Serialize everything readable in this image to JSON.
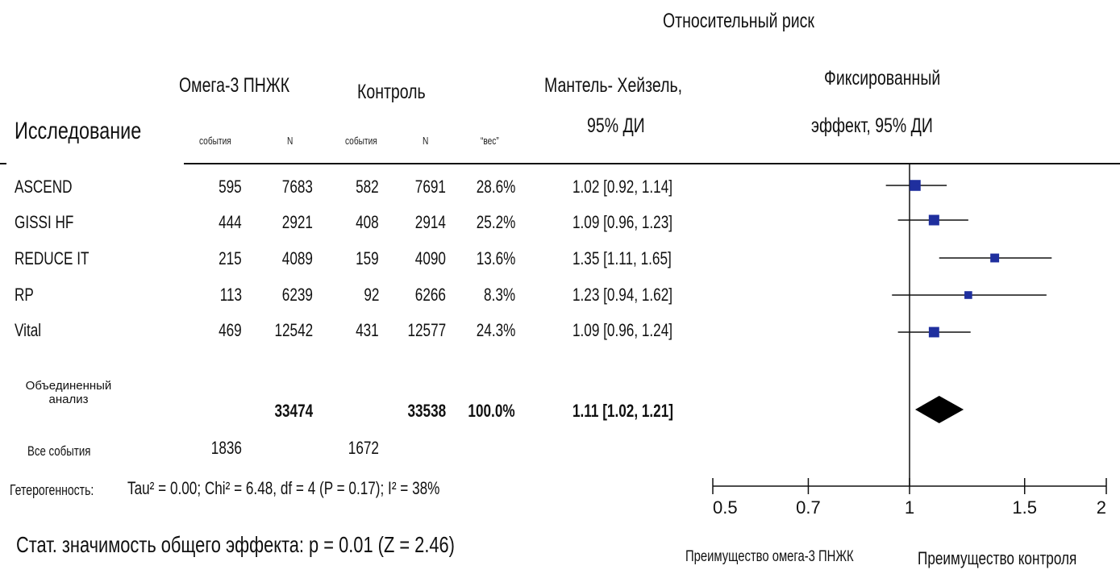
{
  "header": {
    "relative_risk": "Относительный риск",
    "omega": "Омега-3 ПНЖК",
    "control": "Контроль",
    "study": "Исследование",
    "mh_line1": "Мантель- Хейзель,",
    "mh_line2": "95% ДИ",
    "fixed_line1": "Фиксированный",
    "fixed_line2": "эффект, 95% ДИ",
    "events1": "события",
    "n1": "N",
    "events2": "события",
    "n2": "N",
    "weight": "“вес”"
  },
  "studies": [
    {
      "name": "ASCEND",
      "e1": "595",
      "n1": "7683",
      "e2": "582",
      "n2": "7691",
      "weight": "28.6%",
      "ci": "1.02 [0.92, 1.14]"
    },
    {
      "name": "GISSI HF",
      "e1": "444",
      "n1": "2921",
      "e2": "408",
      "n2": "2914",
      "weight": "25.2%",
      "ci": "1.09 [0.96, 1.23]"
    },
    {
      "name": "REDUCE IT",
      "e1": "215",
      "n1": "4089",
      "e2": "159",
      "n2": "4090",
      "weight": "13.6%",
      "ci": "1.35 [1.11, 1.65]"
    },
    {
      "name": "RP",
      "e1": "113",
      "n1": "6239",
      "e2": "92",
      "n2": "6266",
      "weight": "8.3%",
      "ci": "1.23 [0.94, 1.62]"
    },
    {
      "name": "Vital",
      "e1": "469",
      "n1": "12542",
      "e2": "431",
      "n2": "12577",
      "weight": "24.3%",
      "ci": "1.09 [0.96, 1.24]"
    }
  ],
  "pooled": {
    "label_line1": "Объединенный",
    "label_line2": "анализ",
    "n1": "33474",
    "n2": "33538",
    "weight": "100.0%",
    "ci": "1.11 [1.02, 1.21]"
  },
  "all_events": {
    "label": "Все события",
    "e1": "1836",
    "e2": "1672"
  },
  "heterogeneity": {
    "label": "Гетерогенность:",
    "text": "Tau² = 0.00; Chi² = 6.48, df = 4 (P = 0.17); I² = 38%"
  },
  "significance": "Стат. значимость общего эффекта: p = 0.01 (Z = 2.46)",
  "axis": {
    "ticks": [
      "0.5",
      "0.7",
      "1",
      "1.5",
      "2"
    ],
    "favours_left": "Преимущество омега-3 ПНЖК",
    "favours_right": "Преимущество контроля"
  },
  "colors": {
    "marker": "#1f2f9e",
    "diamond": "#000000"
  },
  "chart_data": {
    "type": "scatter",
    "subtype": "forest-plot",
    "title": "Относительный риск",
    "xscale": "log",
    "xlim": [
      0.5,
      2
    ],
    "reference_line": 1,
    "series": [
      {
        "name": "ASCEND",
        "estimate": 1.02,
        "lower": 0.92,
        "upper": 1.14,
        "weight": 28.6
      },
      {
        "name": "GISSI HF",
        "estimate": 1.09,
        "lower": 0.96,
        "upper": 1.23,
        "weight": 25.2
      },
      {
        "name": "REDUCE IT",
        "estimate": 1.35,
        "lower": 1.11,
        "upper": 1.65,
        "weight": 13.6
      },
      {
        "name": "RP",
        "estimate": 1.23,
        "lower": 0.94,
        "upper": 1.62,
        "weight": 8.3
      },
      {
        "name": "Vital",
        "estimate": 1.09,
        "lower": 0.96,
        "upper": 1.24,
        "weight": 24.3
      }
    ],
    "pooled": {
      "estimate": 1.11,
      "lower": 1.02,
      "upper": 1.21
    }
  }
}
